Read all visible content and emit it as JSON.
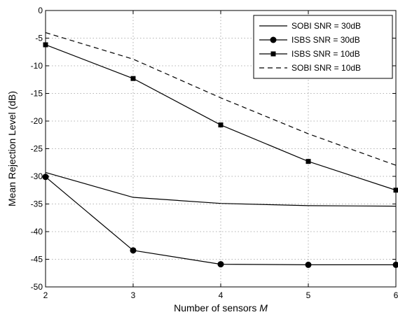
{
  "chart_data": {
    "type": "line",
    "title": "",
    "xlabel": "Number of sensors ",
    "xlabel_italic": "M",
    "ylabel": "Mean Rejection Level (dB)",
    "xlim": [
      2,
      6
    ],
    "ylim": [
      -50,
      0
    ],
    "xticks": [
      2,
      3,
      4,
      5,
      6
    ],
    "xtick_labels": [
      "2",
      "3",
      "4",
      "5",
      "6"
    ],
    "yticks": [
      0,
      -5,
      -10,
      -15,
      -20,
      -25,
      -30,
      -35,
      -40,
      -45,
      -50
    ],
    "ytick_labels": [
      "0",
      "-5",
      "-10",
      "-15",
      "-20",
      "-25",
      "-30",
      "-35",
      "-40",
      "-45",
      "-50"
    ],
    "grid": true,
    "legend_position": "top-right",
    "x": [
      2,
      3,
      4,
      5,
      6
    ],
    "series": [
      {
        "name": "SOBI SNR = 30dB",
        "style": "solid",
        "marker": "none",
        "values": [
          -29.3,
          -33.8,
          -34.9,
          -35.3,
          -35.4
        ]
      },
      {
        "name": "ISBS SNR = 30dB",
        "style": "solid",
        "marker": "circle",
        "values": [
          -30.1,
          -43.4,
          -45.9,
          -46.0,
          -46.0
        ]
      },
      {
        "name": "ISBS SNR = 10dB",
        "style": "solid",
        "marker": "square",
        "values": [
          -6.2,
          -12.3,
          -20.7,
          -27.3,
          -32.5
        ]
      },
      {
        "name": "SOBI SNR = 10dB",
        "style": "dashed",
        "marker": "none",
        "values": [
          -4.0,
          -8.8,
          -15.8,
          -22.3,
          -28.0
        ]
      }
    ]
  }
}
